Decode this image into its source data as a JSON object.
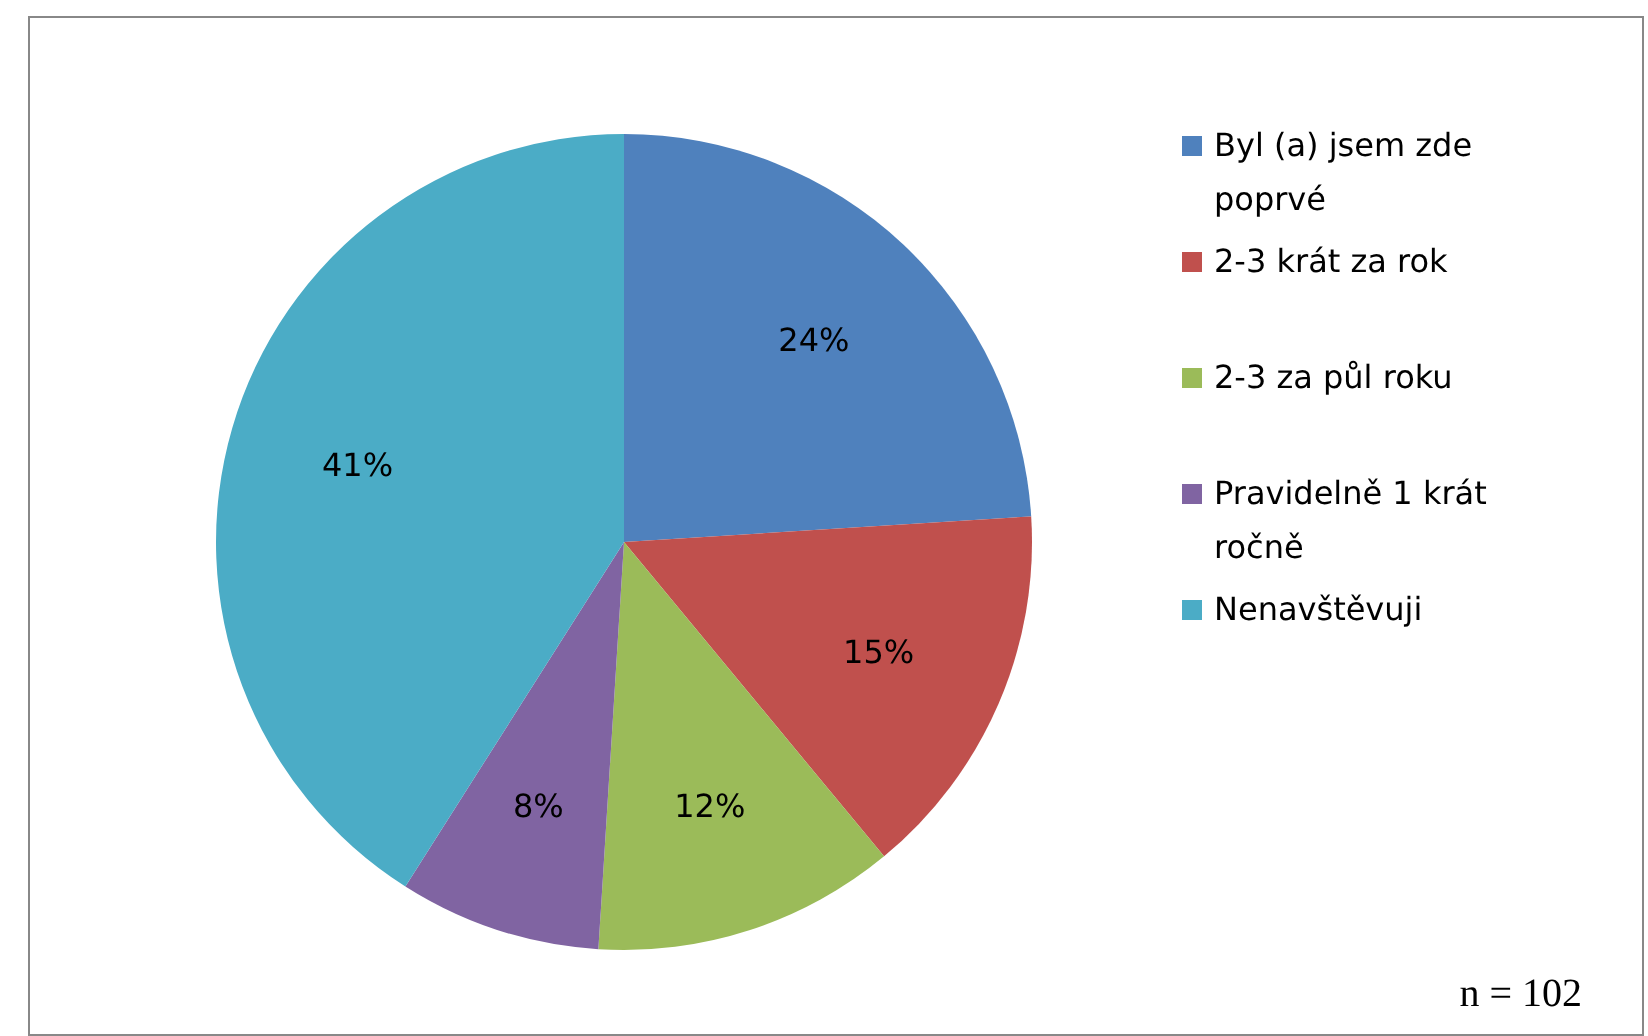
{
  "chart_data": {
    "type": "pie",
    "categories": [
      "Byl (a) jsem zde poprvé",
      "2-3 krát za rok",
      "2-3 za půl roku",
      "Pravidelně 1 krát ročně",
      "Nenavštěvuji"
    ],
    "values": [
      24,
      15,
      12,
      8,
      41
    ],
    "colors": [
      "#4f81bd",
      "#c0504d",
      "#9bbb59",
      "#8064a2",
      "#4bacc6"
    ],
    "value_labels": [
      "24%",
      "15%",
      "12%",
      "8%",
      "41%"
    ],
    "legend": "right",
    "annotations": [
      "n = 102"
    ]
  }
}
